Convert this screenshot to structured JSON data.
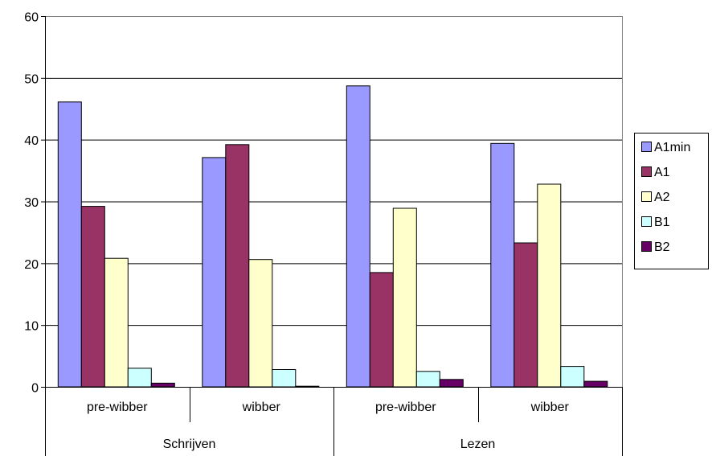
{
  "chart_data": {
    "type": "bar",
    "groups": [
      {
        "label": "Schrijven",
        "categories": [
          "pre-wibber",
          "wibber"
        ]
      },
      {
        "label": "Lezen",
        "categories": [
          "pre-wibber",
          "wibber"
        ]
      }
    ],
    "series": [
      {
        "name": "A1min",
        "color": "#9999ff",
        "values": [
          46.1,
          37.1,
          48.7,
          39.4
        ]
      },
      {
        "name": "A1",
        "color": "#993366",
        "values": [
          29.2,
          39.2,
          18.5,
          23.3
        ]
      },
      {
        "name": "A2",
        "color": "#ffffcc",
        "values": [
          20.8,
          20.6,
          28.9,
          32.8
        ]
      },
      {
        "name": "B1",
        "color": "#ccffff",
        "values": [
          3.0,
          2.8,
          2.5,
          3.3
        ]
      },
      {
        "name": "B2",
        "color": "#660066",
        "values": [
          0.6,
          0.1,
          1.2,
          0.9
        ]
      }
    ],
    "ylim": [
      0,
      60
    ],
    "yticks": [
      0,
      10,
      20,
      30,
      40,
      50,
      60
    ],
    "grid": true,
    "legend": "right"
  }
}
